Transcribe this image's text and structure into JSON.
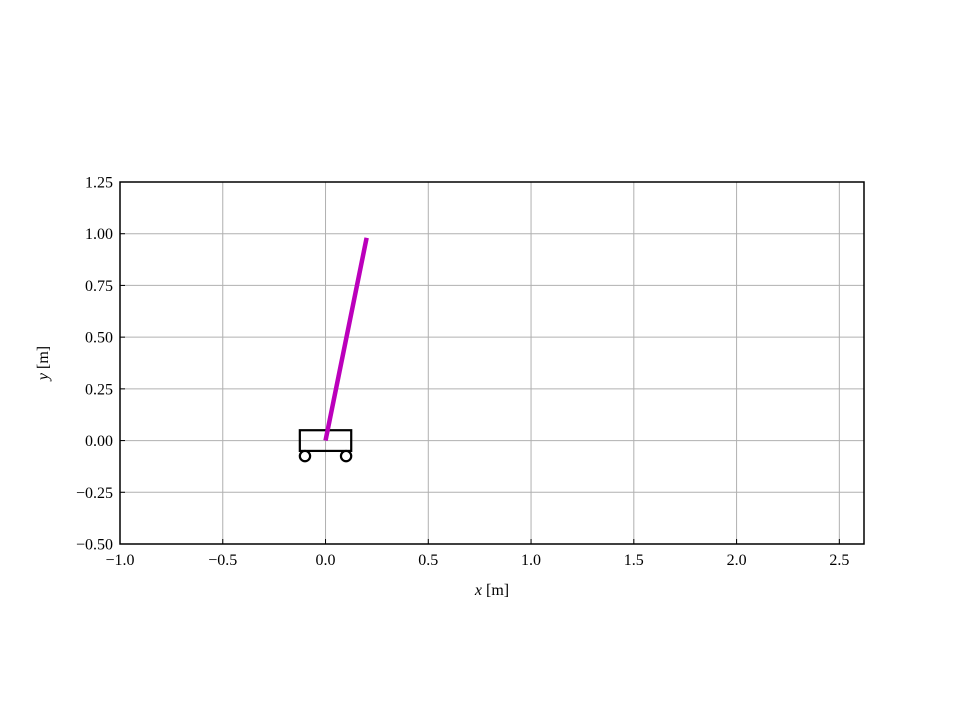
{
  "chart_data": {
    "type": "scatter",
    "title": "",
    "xlabel_var": "x",
    "xlabel_unit": " [m]",
    "ylabel_var": "y",
    "ylabel_unit": " [m]",
    "xlim": [
      -1.0,
      2.62
    ],
    "ylim": [
      -0.5,
      1.25
    ],
    "xticks": [
      -1.0,
      -0.5,
      0.0,
      0.5,
      1.0,
      1.5,
      2.0,
      2.5
    ],
    "xtick_labels": [
      "−1.0",
      "−0.5",
      "0.0",
      "0.5",
      "1.0",
      "1.5",
      "2.0",
      "2.5"
    ],
    "yticks": [
      -0.5,
      -0.25,
      0.0,
      0.25,
      0.5,
      0.75,
      1.0,
      1.25
    ],
    "ytick_labels": [
      "−0.50",
      "−0.25",
      "0.00",
      "0.25",
      "0.50",
      "0.75",
      "1.00",
      "1.25"
    ],
    "grid": true,
    "cart": {
      "x_left": -0.125,
      "x_right": 0.125,
      "y_bottom": -0.05,
      "y_top": 0.05,
      "wheel_centers": [
        [
          -0.1,
          -0.075
        ],
        [
          0.1,
          -0.075
        ]
      ],
      "wheel_radius": 0.025,
      "color": "#000000"
    },
    "pendulum": {
      "start": [
        0.0,
        0.0
      ],
      "end": [
        0.2,
        0.98
      ],
      "color": "#bb00bb"
    }
  }
}
